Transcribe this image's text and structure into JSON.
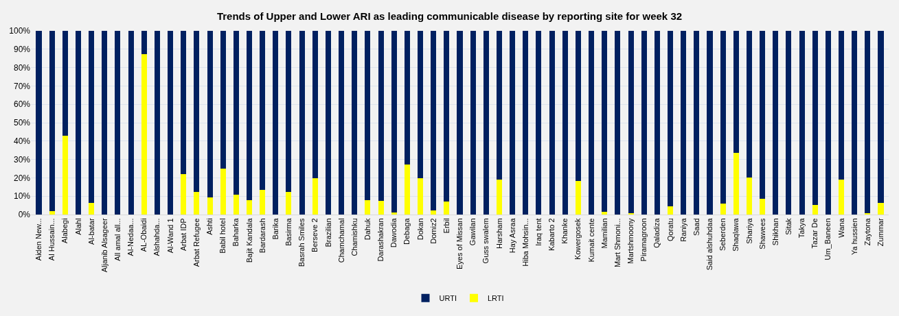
{
  "chart_data": {
    "type": "bar",
    "stacked": true,
    "title": "Trends of Upper and Lower ARI as leading communicable disease by reporting site for week 32",
    "categories": [
      "Aiden New...",
      "Al Hussain...",
      "Alabegi",
      "Alahl",
      "Al-batar",
      "Aljanib Alsageer",
      "All amal all...",
      "Al-Nedaa...",
      "AL-Obaidi",
      "Alshahda...",
      "Al-Wand 1",
      "Arbat IDP",
      "Arbat Refugee",
      "Ashti",
      "Babil hotel",
      "Baharka",
      "Bajit Kandala",
      "Bardarash",
      "Barika",
      "Basirma",
      "Basrah Smiles",
      "Berseve 2",
      "Brazilian",
      "Chamchamal",
      "Chamishku",
      "Dahuk",
      "Darashakran",
      "Dawodia",
      "Debaga",
      "Dokan",
      "Domiz2",
      "Erbil",
      "Eyes of Missan",
      "Gawilan",
      "Guss swalem",
      "Harsham",
      "Hay Asraa",
      "Hiba Mohsin...",
      "Iraq tent",
      "Kabarto 2",
      "Khanke",
      "Kowergosek",
      "Kumait cente",
      "Mamilian",
      "Mart Shmoni...",
      "Martshmoony",
      "Piramagroon",
      "Qaladiza",
      "Qoratu",
      "Raniya",
      "Saad",
      "Said alshuhdaa",
      "Seberden",
      "Shaqlawa",
      "Shariya",
      "Shawees",
      "Shikhan",
      "Sitak",
      "Takya",
      "Tazar De",
      "Um_Baneen",
      "Wana",
      "Ya hussien",
      "Zaytona",
      "Zummar"
    ],
    "series": [
      {
        "name": "LRTI",
        "color": "#ffff00",
        "values": [
          0,
          2,
          43,
          0,
          6.5,
          0,
          0,
          0,
          87.5,
          0,
          0,
          22,
          12.5,
          9.5,
          25,
          10.7,
          8,
          13.3,
          0,
          12.5,
          0,
          19.6,
          0,
          0,
          0,
          8,
          7.6,
          1,
          27.3,
          19.6,
          2.2,
          7.1,
          0,
          0,
          0,
          19,
          0,
          0,
          0,
          0,
          0,
          18.2,
          0,
          1.5,
          0,
          0.8,
          0,
          0,
          4.5,
          0,
          0,
          0,
          5.8,
          33.5,
          20,
          8.4,
          0,
          0,
          0,
          5.2,
          0,
          19.2,
          0,
          0.8,
          6.5
        ]
      },
      {
        "name": "URTI",
        "color": "#002060",
        "values": [
          100,
          98,
          57,
          100,
          93.5,
          100,
          100,
          100,
          12.5,
          100,
          100,
          78,
          87.5,
          90.5,
          75,
          89.3,
          92,
          86.7,
          100,
          87.5,
          100,
          80.4,
          100,
          100,
          100,
          92,
          92.4,
          99,
          72.7,
          80.4,
          97.8,
          92.9,
          100,
          100,
          100,
          81,
          100,
          100,
          100,
          100,
          100,
          81.8,
          100,
          98.5,
          100,
          99.2,
          100,
          100,
          95.5,
          100,
          100,
          100,
          94.2,
          66.5,
          80,
          91.6,
          100,
          100,
          100,
          94.8,
          100,
          80.8,
          100,
          99.2,
          93.5
        ]
      }
    ],
    "ylim": [
      0,
      100
    ],
    "yticks": [
      {
        "value": 0,
        "label": "0%"
      },
      {
        "value": 10,
        "label": "10%"
      },
      {
        "value": 20,
        "label": "20%"
      },
      {
        "value": 30,
        "label": "30%"
      },
      {
        "value": 40,
        "label": "40%"
      },
      {
        "value": 50,
        "label": "50%"
      },
      {
        "value": 60,
        "label": "60%"
      },
      {
        "value": 70,
        "label": "70%"
      },
      {
        "value": 80,
        "label": "80%"
      },
      {
        "value": 90,
        "label": "90%"
      },
      {
        "value": 100,
        "label": "100%"
      }
    ],
    "grid": "y",
    "legend": "bottom"
  }
}
